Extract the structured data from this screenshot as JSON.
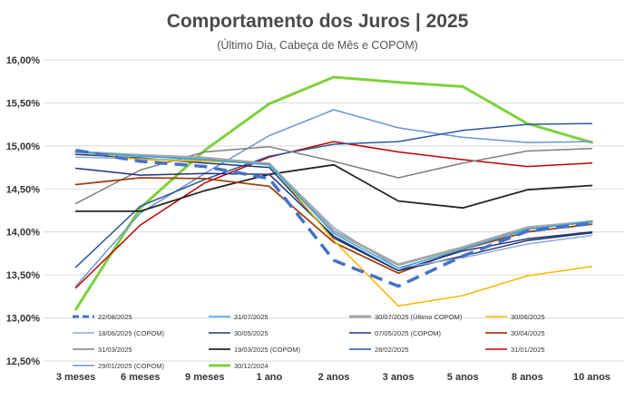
{
  "chart_data": {
    "type": "line",
    "title": "Comportamento dos Juros | 2025",
    "subtitle": "(Último Dia, Cabeça de Mês e COPOM)",
    "xlabel": "",
    "ylabel": "",
    "categories": [
      "3 meses",
      "6 meses",
      "9 meses",
      "1 ano",
      "2 anos",
      "3 anos",
      "5 anos",
      "8 anos",
      "10 anos"
    ],
    "y_tick_labels": [
      "12,50%",
      "13,00%",
      "13,50%",
      "14,00%",
      "14,50%",
      "15,00%",
      "15,50%",
      "16,00%"
    ],
    "ylim": [
      12.5,
      16.0
    ],
    "grid": true,
    "legend_position": "bottom",
    "series": [
      {
        "name": "22/08/2025",
        "color": "#4472C4",
        "dashed": true,
        "width": 3.5,
        "values": [
          14.95,
          14.82,
          14.76,
          14.62,
          13.67,
          13.37,
          13.72,
          14.01,
          14.1
        ]
      },
      {
        "name": "31/07/2025",
        "color": "#2EA8E0",
        "dashed": false,
        "width": 1.5,
        "values": [
          14.93,
          14.88,
          14.84,
          14.78,
          13.98,
          13.58,
          13.8,
          14.03,
          14.12
        ]
      },
      {
        "name": "30/07/2025 (Último COPOM)",
        "color": "#A6A6A6",
        "dashed": false,
        "width": 3,
        "values": [
          14.93,
          14.89,
          14.86,
          14.79,
          14.01,
          13.62,
          13.82,
          14.05,
          14.12
        ]
      },
      {
        "name": "30/06/2025",
        "color": "#F5B800",
        "dashed": false,
        "width": 1.5,
        "values": [
          14.95,
          14.84,
          14.82,
          14.8,
          13.9,
          13.14,
          13.26,
          13.49,
          13.6
        ]
      },
      {
        "name": "18/06/2025 (COPOM)",
        "color": "#8FAADC",
        "dashed": false,
        "width": 1.5,
        "values": [
          14.87,
          14.85,
          14.83,
          14.79,
          14.05,
          13.58,
          13.7,
          13.86,
          13.96
        ]
      },
      {
        "name": "30/05/2025",
        "color": "#1F3864",
        "dashed": false,
        "width": 1.5,
        "values": [
          14.9,
          14.86,
          14.8,
          14.75,
          13.93,
          13.55,
          13.72,
          13.9,
          13.99
        ]
      },
      {
        "name": "07/05/2025 (COPOM)",
        "color": "#203080",
        "dashed": false,
        "width": 1.5,
        "values": [
          14.74,
          14.66,
          14.68,
          14.67,
          13.95,
          13.55,
          13.78,
          13.92,
          14.0
        ]
      },
      {
        "name": "30/04/2025",
        "color": "#A04010",
        "dashed": false,
        "width": 1.8,
        "values": [
          14.55,
          14.63,
          14.62,
          14.53,
          13.88,
          13.52,
          13.8,
          14.0,
          14.09
        ]
      },
      {
        "name": "31/03/2025",
        "color": "#7F7F7F",
        "dashed": false,
        "width": 1.5,
        "values": [
          14.33,
          14.72,
          14.93,
          14.99,
          14.82,
          14.63,
          14.8,
          14.94,
          14.97
        ]
      },
      {
        "name": "19/03/2025 (COPOM)",
        "color": "#262626",
        "dashed": false,
        "width": 1.8,
        "values": [
          14.24,
          14.24,
          14.48,
          14.67,
          14.78,
          14.36,
          14.28,
          14.49,
          14.54
        ]
      },
      {
        "name": "28/02/2025",
        "color": "#2F5597",
        "dashed": false,
        "width": 1.5,
        "values": [
          13.59,
          14.3,
          14.61,
          14.88,
          15.02,
          15.05,
          15.18,
          15.25,
          15.26
        ]
      },
      {
        "name": "31/01/2025",
        "color": "#C00000",
        "dashed": false,
        "width": 1.5,
        "values": [
          13.35,
          14.08,
          14.57,
          14.87,
          15.05,
          14.93,
          14.84,
          14.76,
          14.8
        ]
      },
      {
        "name": "29/01/2025 (COPOM)",
        "color": "#6E94D2",
        "dashed": false,
        "width": 1.5,
        "values": [
          13.37,
          14.22,
          14.68,
          15.12,
          15.42,
          15.21,
          15.1,
          15.04,
          15.05
        ]
      },
      {
        "name": "30/12/2024",
        "color": "#7DD13B",
        "dashed": false,
        "width": 3,
        "values": [
          13.1,
          14.28,
          14.95,
          15.49,
          15.8,
          15.74,
          15.69,
          15.26,
          15.04
        ]
      }
    ]
  }
}
